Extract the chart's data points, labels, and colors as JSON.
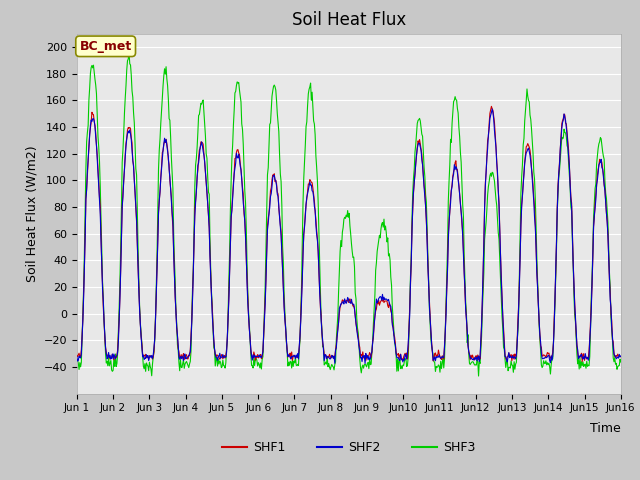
{
  "title": "Soil Heat Flux",
  "ylabel": "Soil Heat Flux (W/m2)",
  "xlabel": "Time",
  "ylim": [
    -60,
    210
  ],
  "yticks": [
    -40,
    -20,
    0,
    20,
    40,
    60,
    80,
    100,
    120,
    140,
    160,
    180,
    200
  ],
  "fig_bg_color": "#c8c8c8",
  "plot_bg_color": "#e8e8e8",
  "annotation_text": "BC_met",
  "annotation_bg": "#ffffcc",
  "annotation_border": "#888800",
  "colors": {
    "SHF1": "#cc0000",
    "SHF2": "#0000cc",
    "SHF3": "#00cc00"
  },
  "num_days": 15,
  "points_per_day": 48,
  "seed": 42,
  "day_peaks_shf1": [
    150,
    140,
    130,
    128,
    122,
    105,
    100,
    10,
    10,
    130,
    112,
    155,
    128,
    150,
    115
  ],
  "day_peaks_shf2": [
    148,
    138,
    130,
    126,
    120,
    103,
    98,
    10,
    12,
    128,
    110,
    152,
    125,
    148,
    113
  ],
  "day_peaks_shf3": [
    188,
    192,
    182,
    160,
    174,
    170,
    170,
    75,
    68,
    147,
    162,
    105,
    162,
    140,
    130
  ]
}
